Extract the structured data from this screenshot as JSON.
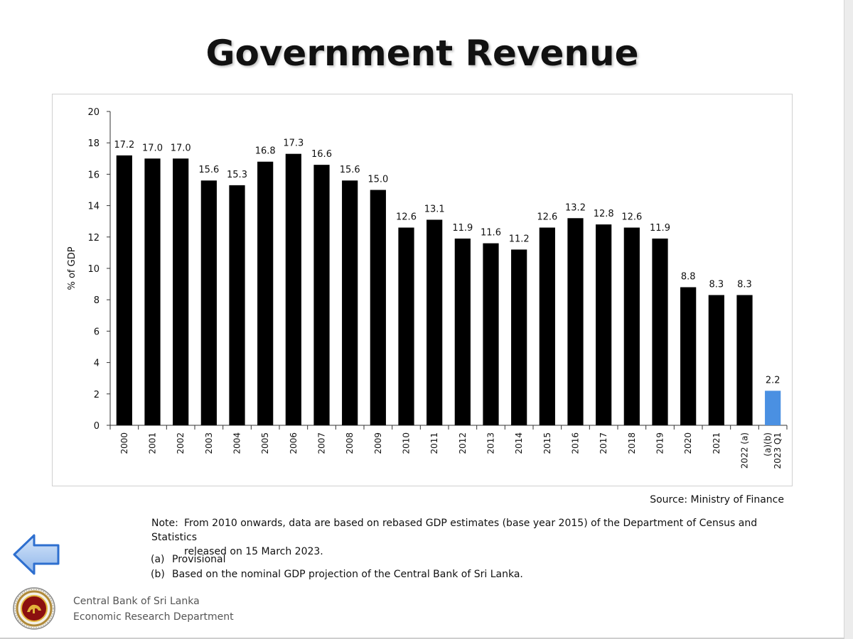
{
  "title": "Government Revenue",
  "source": "Source: Ministry of Finance",
  "note": {
    "label": "Note:",
    "line1": "From 2010 onwards, data are based on rebased GDP estimates (base year 2015) of the Department of Census and Statistics",
    "line2": "released on 15 March 2023."
  },
  "footnotes": [
    {
      "key": "(a)",
      "text": "Provisional"
    },
    {
      "key": "(b)",
      "text": "Based on the nominal GDP projection of the Central Bank of Sri Lanka."
    }
  ],
  "organization": {
    "line1": "Central Bank of Sri Lanka",
    "line2": "Economic Research Department"
  },
  "icons": {
    "back": "left-arrow-icon",
    "logo": "central-bank-seal-icon"
  },
  "colors": {
    "bar": "#000000",
    "highlight_bar": "#4a90e2",
    "arrow_fill": "#a9c9ef",
    "arrow_stroke": "#2e6fcf"
  },
  "chart_data": {
    "type": "bar",
    "ylabel": "% of GDP",
    "xlabel": "",
    "ylim": [
      0,
      20
    ],
    "yticks": [
      0,
      2,
      4,
      6,
      8,
      10,
      12,
      14,
      16,
      18,
      20
    ],
    "grid": false,
    "categories": [
      "2000",
      "2001",
      "2002",
      "2003",
      "2004",
      "2005",
      "2006",
      "2007",
      "2008",
      "2009",
      "2010",
      "2011",
      "2012",
      "2013",
      "2014",
      "2015",
      "2016",
      "2017",
      "2018",
      "2019",
      "2020",
      "2021",
      "2022 (a)",
      "2023 Q1 (a)(b)"
    ],
    "category_lines": [
      [
        "2000"
      ],
      [
        "2001"
      ],
      [
        "2002"
      ],
      [
        "2003"
      ],
      [
        "2004"
      ],
      [
        "2005"
      ],
      [
        "2006"
      ],
      [
        "2007"
      ],
      [
        "2008"
      ],
      [
        "2009"
      ],
      [
        "2010"
      ],
      [
        "2011"
      ],
      [
        "2012"
      ],
      [
        "2013"
      ],
      [
        "2014"
      ],
      [
        "2015"
      ],
      [
        "2016"
      ],
      [
        "2017"
      ],
      [
        "2018"
      ],
      [
        "2019"
      ],
      [
        "2020"
      ],
      [
        "2021"
      ],
      [
        "2022 (a)"
      ],
      [
        "2023 Q1",
        "(a)(b)"
      ]
    ],
    "values": [
      17.2,
      17.0,
      17.0,
      15.6,
      15.3,
      16.8,
      17.3,
      16.6,
      15.6,
      15.0,
      12.6,
      13.1,
      11.9,
      11.6,
      11.2,
      12.6,
      13.2,
      12.8,
      12.6,
      11.9,
      8.8,
      8.3,
      8.3,
      2.2
    ],
    "labels": [
      "17.2",
      "17.0",
      "17.0",
      "15.6",
      "15.3",
      "16.8",
      "17.3",
      "16.6",
      "15.6",
      "15.0",
      "12.6",
      "13.1",
      "11.9",
      "11.6",
      "11.2",
      "12.6",
      "13.2",
      "12.8",
      "12.6",
      "11.9",
      "8.8",
      "8.3",
      "8.3",
      "2.2"
    ],
    "highlight_index": 23
  }
}
